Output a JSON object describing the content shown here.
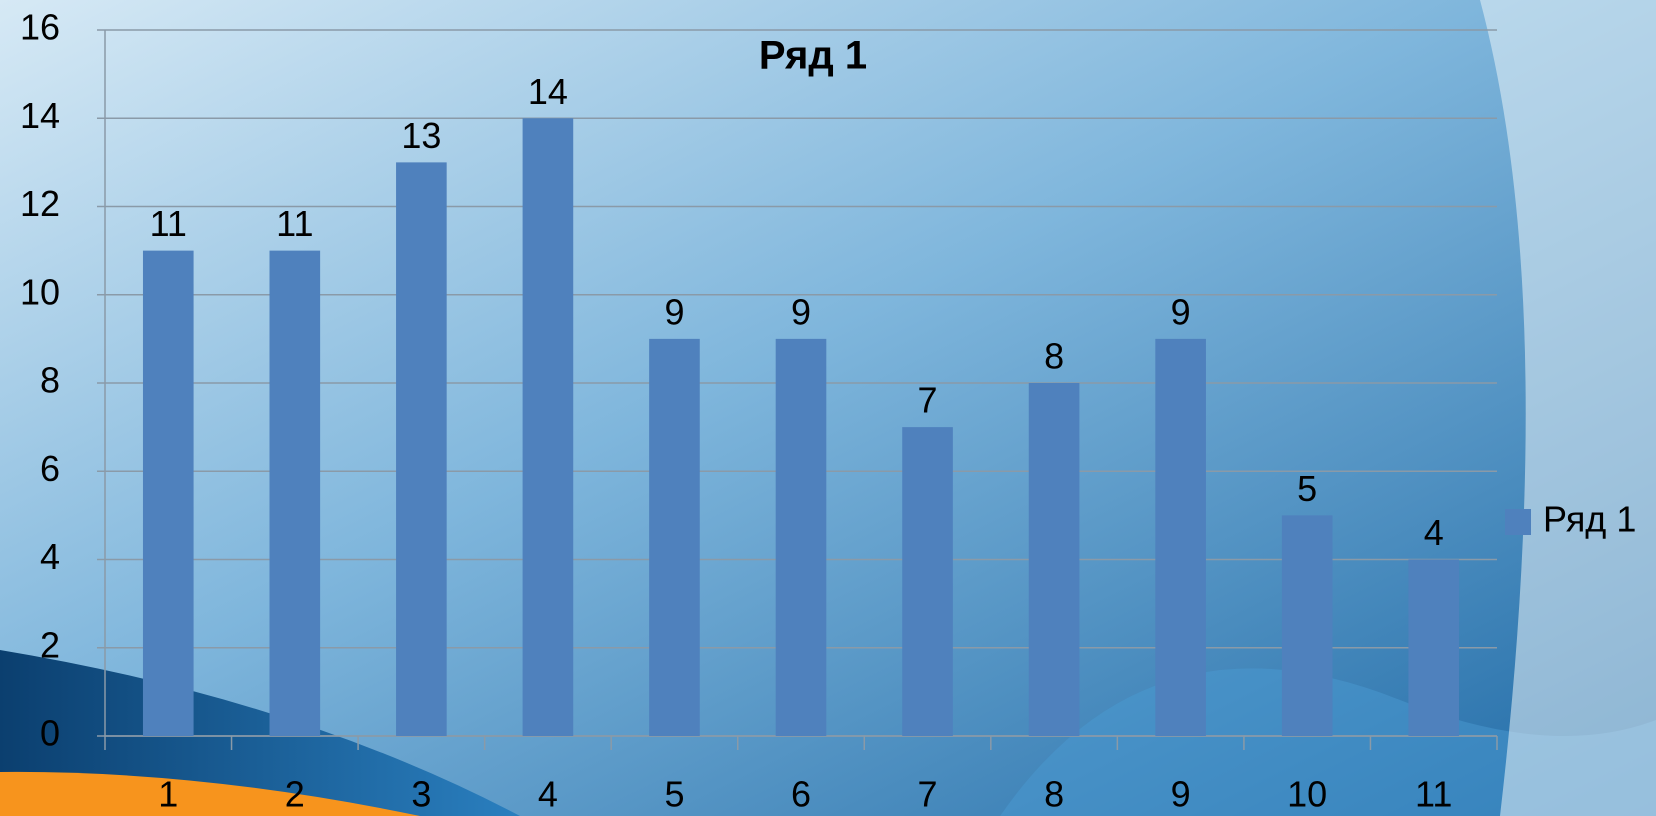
{
  "chart_data": {
    "type": "bar",
    "title": "Ряд 1",
    "categories": [
      "1",
      "2",
      "3",
      "4",
      "5",
      "6",
      "7",
      "8",
      "9",
      "10",
      "11"
    ],
    "series": [
      {
        "name": "Ряд 1",
        "color": "#4f81bd",
        "values": [
          11,
          11,
          13,
          14,
          9,
          9,
          7,
          8,
          9,
          5,
          4
        ]
      }
    ],
    "ylim": [
      0,
      16
    ],
    "yticks": [
      0,
      2,
      4,
      6,
      8,
      10,
      12,
      14,
      16
    ],
    "grid": true,
    "legend": "right",
    "data_labels": true
  }
}
